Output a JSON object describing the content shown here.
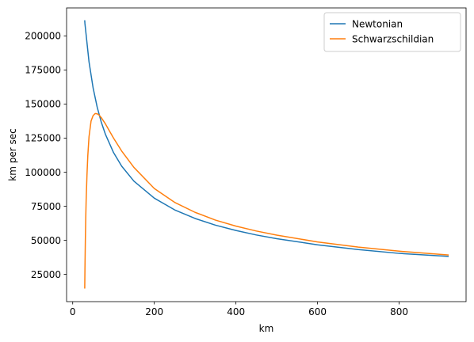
{
  "chart_data": {
    "type": "line",
    "title": "",
    "xlabel": "km",
    "ylabel": "km per sec",
    "xlim": [
      -15,
      964
    ],
    "ylim": [
      5000,
      220500
    ],
    "xticks": [
      0,
      200,
      400,
      600,
      800
    ],
    "yticks": [
      25000,
      50000,
      75000,
      100000,
      125000,
      150000,
      175000,
      200000
    ],
    "grid": false,
    "legend": "top-right",
    "series": [
      {
        "name": "Newtonian",
        "color": "#1f77b4",
        "x": [
          29.5,
          30,
          40,
          50,
          60,
          70,
          80,
          100,
          120,
          150,
          200,
          250,
          300,
          350,
          400,
          450,
          500,
          600,
          700,
          800,
          920
        ],
        "y": [
          211000,
          208900,
          180900,
          161800,
          147700,
          136700,
          127900,
          114400,
          104400,
          93400,
          80900,
          72300,
          66000,
          61100,
          57200,
          53900,
          51200,
          46700,
          43200,
          40400,
          38200
        ]
      },
      {
        "name": "Schwarzschildian",
        "color": "#ff7f0e",
        "x": [
          29.5,
          30,
          31,
          32,
          33,
          35,
          37,
          40,
          45,
          50,
          55,
          60,
          65,
          70,
          80,
          100,
          120,
          150,
          200,
          250,
          300,
          350,
          400,
          450,
          500,
          600,
          700,
          800,
          920
        ],
        "y": [
          15000,
          29000,
          50000,
          67000,
          80000,
          98000,
          112000,
          126000,
          137500,
          141500,
          143000,
          142800,
          141800,
          140000,
          135500,
          125000,
          115500,
          103500,
          88000,
          77800,
          70500,
          64800,
          60400,
          56800,
          53800,
          48800,
          45000,
          42000,
          39200
        ]
      }
    ]
  }
}
